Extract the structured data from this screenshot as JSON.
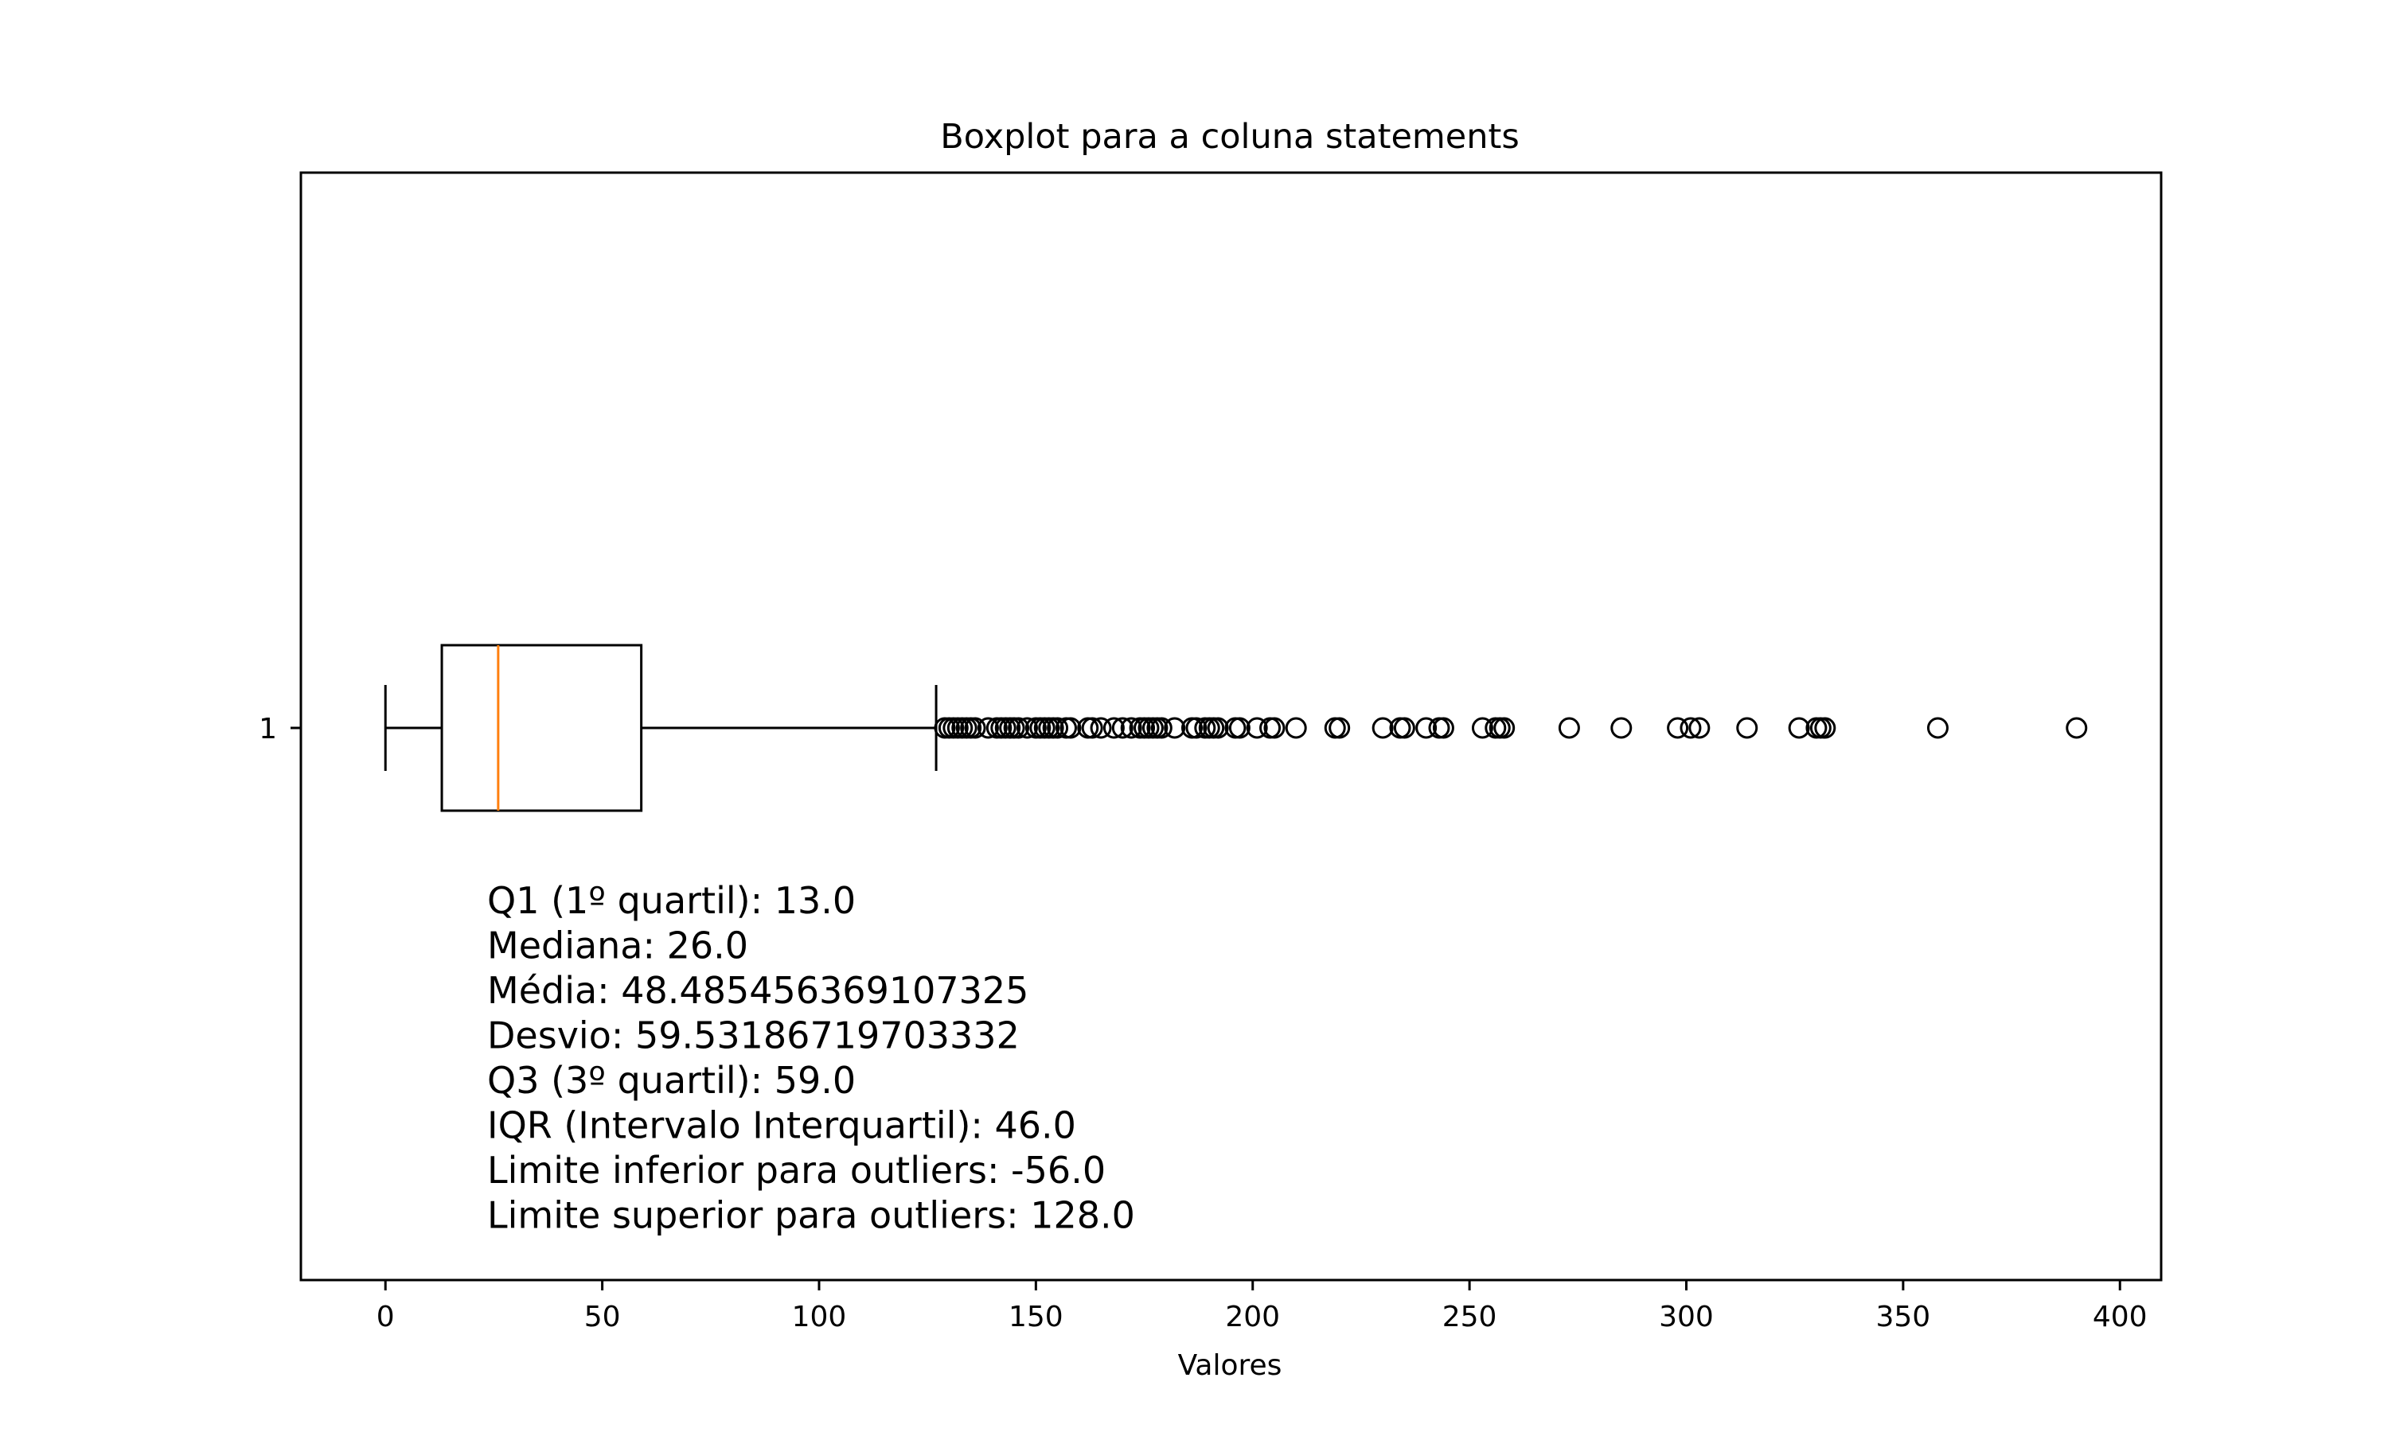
{
  "chart_data": {
    "type": "boxplot",
    "orientation": "horizontal",
    "title": "Boxplot para a coluna statements",
    "xlabel": "Valores",
    "ylabel": "",
    "xlim": [
      -19.5,
      409.5
    ],
    "xticks": [
      0,
      50,
      100,
      150,
      200,
      250,
      300,
      350,
      400
    ],
    "xtick_labels": [
      "0",
      "50",
      "100",
      "150",
      "200",
      "250",
      "300",
      "350",
      "400"
    ],
    "ytick_labels": [
      "1"
    ],
    "grid": false,
    "colors": {
      "box": "#000000",
      "median": "#ff7f0e",
      "outlier_edge": "#000000"
    },
    "box": {
      "whisker_low": 0,
      "q1": 13.0,
      "median": 26.0,
      "q3": 59.0,
      "whisker_high": 127
    },
    "outliers": [
      129,
      130,
      131,
      132,
      133,
      134,
      135,
      136,
      139,
      141,
      142,
      143,
      144,
      145,
      146,
      148,
      150,
      151,
      152,
      153,
      154,
      155,
      157,
      158,
      162,
      163,
      165,
      168,
      170,
      172,
      174,
      175,
      176,
      177,
      178,
      179,
      182,
      186,
      187,
      189,
      190,
      191,
      192,
      196,
      197,
      201,
      204,
      205,
      210,
      219,
      220,
      230,
      234,
      235,
      240,
      243,
      244,
      253,
      256,
      257,
      258,
      273,
      285,
      298,
      301,
      303,
      314,
      326,
      330,
      331,
      332,
      358,
      390
    ],
    "annotation_lines": [
      "Q1 (1º quartil): 13.0",
      "Mediana: 26.0",
      "Média: 48.485456369107325",
      "Desvio: 59.53186719703332",
      "Q3 (3º quartil): 59.0",
      "IQR (Intervalo Interquartil): 46.0",
      "Limite inferior para outliers: -56.0",
      "Limite superior para outliers: 128.0"
    ]
  }
}
